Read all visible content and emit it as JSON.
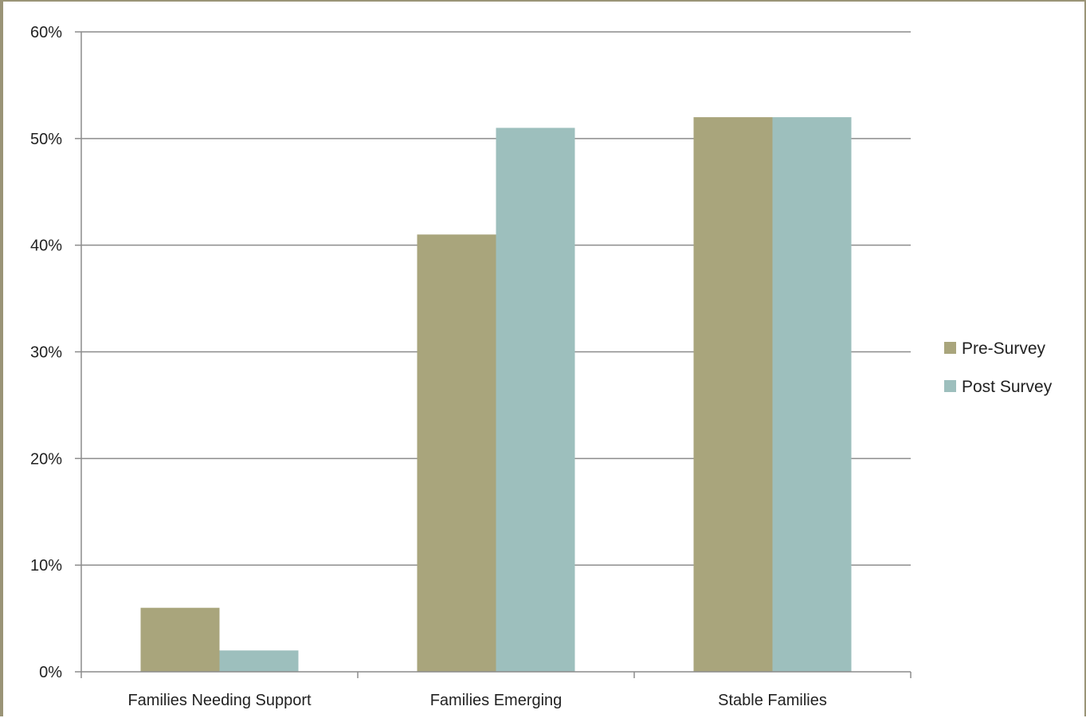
{
  "chart_data": {
    "type": "bar",
    "title": "",
    "xlabel": "",
    "ylabel": "",
    "categories": [
      "Families Needing Support",
      "Families Emerging",
      "Stable Families"
    ],
    "series": [
      {
        "name": "Pre-Survey",
        "values": [
          6,
          41,
          52
        ],
        "color": "#a9a57c"
      },
      {
        "name": "Post Survey",
        "values": [
          2,
          51,
          52
        ],
        "color": "#9dbfbd"
      }
    ],
    "ylim": [
      0,
      60
    ],
    "yticks": [
      "0%",
      "10%",
      "20%",
      "30%",
      "40%",
      "50%",
      "60%"
    ],
    "grid": true,
    "legend_position": "right"
  }
}
